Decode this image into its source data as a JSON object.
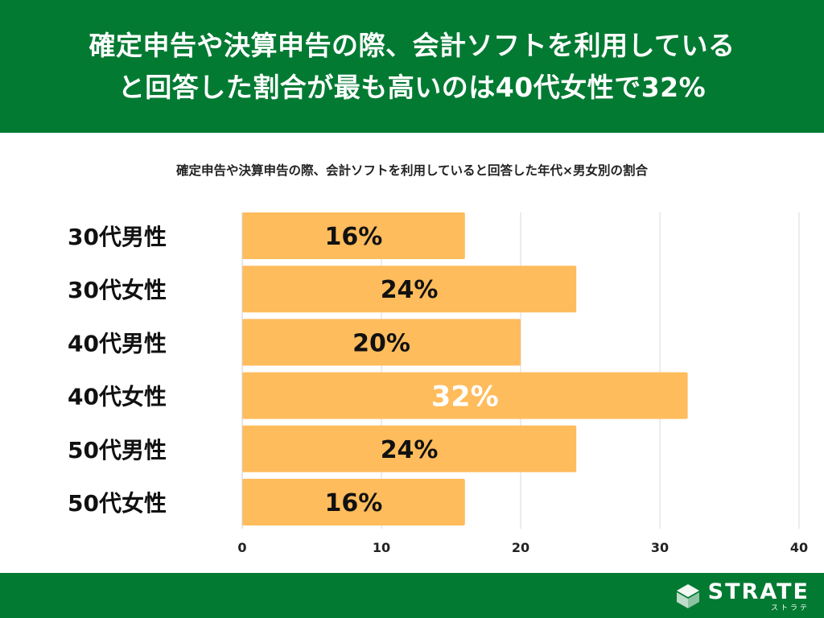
{
  "header": {
    "title_line1": "確定申告や決算申告の際、会計ソフトを利用している",
    "title_line2": "と回答した割合が最も高いのは40代女性で32%"
  },
  "chart_data": {
    "type": "bar",
    "orientation": "horizontal",
    "title": "確定申告や決算申告の際、会計ソフトを利用していると回答した年代×男女別の割合",
    "categories": [
      "30代男性",
      "30代女性",
      "40代男性",
      "40代女性",
      "50代男性",
      "50代女性"
    ],
    "values": [
      16,
      24,
      20,
      32,
      24,
      16
    ],
    "data_labels": [
      "16%",
      "24%",
      "20%",
      "32%",
      "24%",
      "16%"
    ],
    "highlight_index": 3,
    "xlim": [
      0,
      40
    ],
    "ticks": [
      0,
      10,
      20,
      30,
      40
    ],
    "grid": true,
    "colors": {
      "bar": "#ffbc5c",
      "label": "#111111",
      "highlight_label": "#ffffff",
      "grid": "#d9d9d9"
    }
  },
  "footer": {
    "logo_text": "STRATE",
    "logo_sub": "ストラテ"
  }
}
